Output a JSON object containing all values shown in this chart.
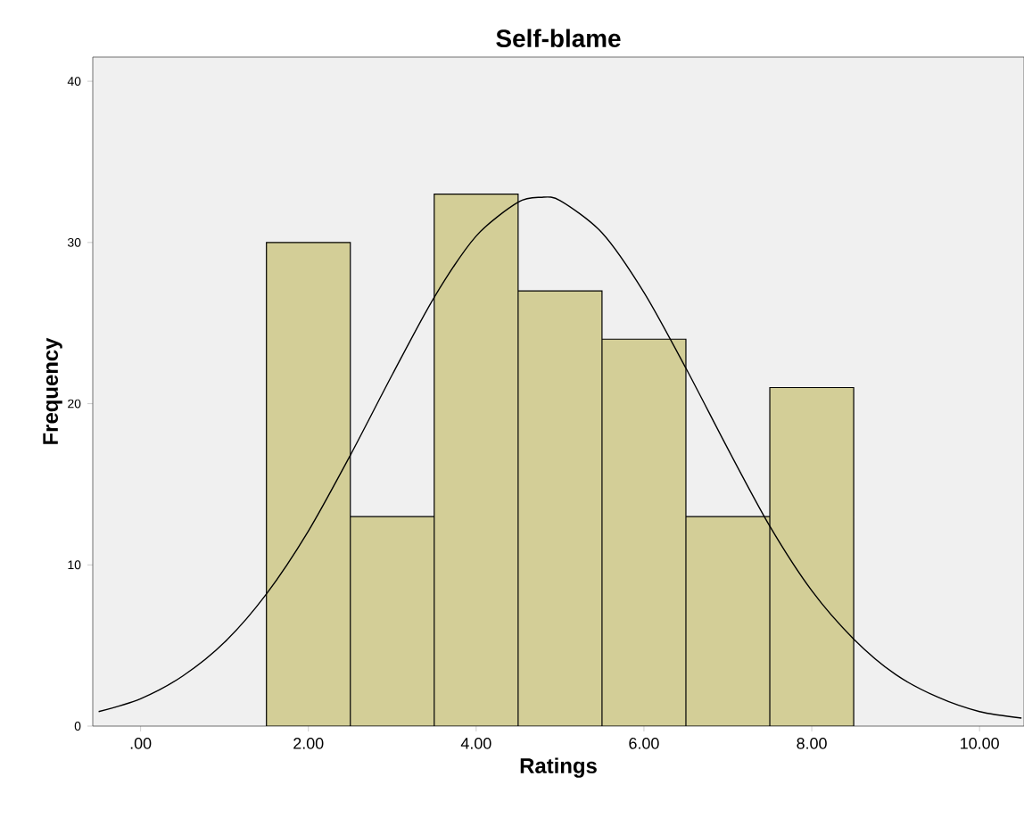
{
  "chart_data": {
    "type": "histogram",
    "title": "Self-blame",
    "xlabel": "Ratings",
    "ylabel": "Frequency",
    "series": [
      {
        "bins": [
          1.5,
          2.5,
          3.5,
          4.5,
          5.5,
          6.5,
          7.5,
          8.5
        ],
        "values": [
          30,
          13,
          33,
          27,
          24,
          13,
          21
        ],
        "color": "#d3ce97"
      },
      {
        "type": "line",
        "color": "#000000",
        "x": [
          -0.5,
          0,
          0.5,
          1,
          1.5,
          2,
          2.5,
          3,
          3.5,
          4,
          4.5,
          4.77,
          5,
          5.5,
          6,
          6.5,
          7,
          7.5,
          8,
          8.5,
          9,
          9.5,
          10,
          10.5
        ],
        "values": [
          0.9,
          1.7,
          3.1,
          5.2,
          8.2,
          12.1,
          16.8,
          21.8,
          26.6,
          30.4,
          32.5,
          32.8,
          32.6,
          30.6,
          26.9,
          22.2,
          17.2,
          12.4,
          8.4,
          5.4,
          3.2,
          1.8,
          0.9,
          0.5
        ]
      }
    ],
    "xlim": [
      -0.57,
      10.53
    ],
    "ylim": [
      0,
      41.5
    ],
    "xticks": [
      {
        "value": 0,
        "label": ".00"
      },
      {
        "value": 2,
        "label": "2.00"
      },
      {
        "value": 4,
        "label": "4.00"
      },
      {
        "value": 6,
        "label": "6.00"
      },
      {
        "value": 8,
        "label": "8.00"
      },
      {
        "value": 10,
        "label": "10.00"
      }
    ],
    "yticks": [
      0,
      10,
      20,
      30,
      40
    ],
    "grid": false
  }
}
